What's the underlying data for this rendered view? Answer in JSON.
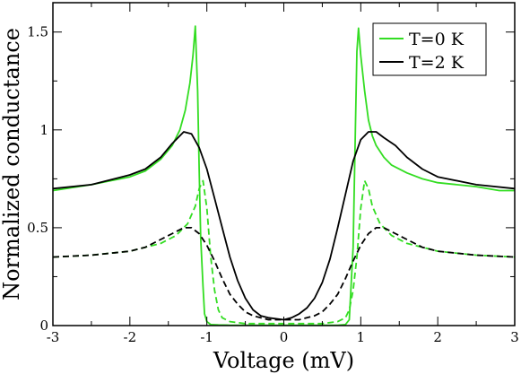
{
  "chart_data": {
    "type": "line",
    "xlabel": "Voltage (mV)",
    "ylabel": "Normalized conductance",
    "xlim": [
      -3,
      3
    ],
    "ylim": [
      0,
      1.65
    ],
    "x_ticks": [
      -3,
      -2,
      -1,
      0,
      1,
      2,
      3
    ],
    "x_tick_labels": [
      "-3",
      "-2",
      "-1",
      "0",
      "1",
      "2",
      "3"
    ],
    "y_ticks": [
      0,
      0.5,
      1,
      1.5
    ],
    "y_tick_labels": [
      "0",
      "0.5",
      "1",
      "1.5"
    ],
    "grid": false,
    "legend": {
      "placement": "top-right",
      "entries": [
        {
          "label": "T=0 K",
          "color": "#33dd22"
        },
        {
          "label": "T=2 K",
          "color": "#000000"
        }
      ]
    },
    "series": [
      {
        "color": "#33dd22",
        "dash": "solid",
        "legend_entry": 0,
        "x": [
          -3,
          -2.5,
          -2,
          -1.8,
          -1.6,
          -1.45,
          -1.35,
          -1.28,
          -1.22,
          -1.18,
          -1.15,
          -1.12,
          -1.1,
          -1.08,
          -1.05,
          -1.03,
          -1.0,
          -0.95,
          -0.85,
          -0.7,
          -0.5,
          -0.3,
          0,
          0.3,
          0.5,
          0.7,
          0.8,
          0.85,
          0.9,
          0.93,
          0.95,
          0.97,
          1.0,
          1.05,
          1.1,
          1.15,
          1.2,
          1.3,
          1.4,
          1.6,
          1.8,
          2.0,
          2.5,
          2.8,
          3.0
        ],
        "y": [
          0.69,
          0.72,
          0.76,
          0.79,
          0.85,
          0.92,
          1.0,
          1.1,
          1.24,
          1.38,
          1.53,
          1.2,
          0.8,
          0.45,
          0.2,
          0.06,
          0.02,
          0.005,
          0.003,
          0.002,
          0.002,
          0.002,
          0.002,
          0.002,
          0.002,
          0.002,
          0.005,
          0.03,
          0.4,
          1.0,
          1.4,
          1.52,
          1.38,
          1.2,
          1.05,
          0.97,
          0.92,
          0.86,
          0.82,
          0.78,
          0.75,
          0.73,
          0.71,
          0.69,
          0.69
        ]
      },
      {
        "color": "#000000",
        "dash": "solid",
        "legend_entry": 1,
        "x": [
          -3,
          -2.5,
          -2,
          -1.8,
          -1.6,
          -1.45,
          -1.3,
          -1.2,
          -1.1,
          -1.0,
          -0.9,
          -0.8,
          -0.7,
          -0.6,
          -0.5,
          -0.4,
          -0.3,
          -0.2,
          0,
          0.1,
          0.2,
          0.3,
          0.4,
          0.5,
          0.6,
          0.7,
          0.8,
          0.9,
          1.0,
          1.1,
          1.2,
          1.3,
          1.45,
          1.6,
          1.8,
          2.0,
          2.5,
          3.0
        ],
        "y": [
          0.7,
          0.72,
          0.77,
          0.8,
          0.86,
          0.93,
          0.99,
          0.98,
          0.91,
          0.8,
          0.65,
          0.5,
          0.35,
          0.23,
          0.14,
          0.08,
          0.05,
          0.04,
          0.03,
          0.04,
          0.06,
          0.09,
          0.14,
          0.22,
          0.34,
          0.5,
          0.67,
          0.84,
          0.95,
          0.99,
          0.99,
          0.96,
          0.92,
          0.86,
          0.8,
          0.76,
          0.72,
          0.7
        ]
      },
      {
        "color": "#33dd22",
        "dash": "dashed",
        "x": [
          -3,
          -2.5,
          -2,
          -1.8,
          -1.6,
          -1.4,
          -1.25,
          -1.15,
          -1.1,
          -1.05,
          -1.0,
          -0.95,
          -0.9,
          -0.85,
          -0.8,
          -0.7,
          -0.5,
          -0.3,
          0,
          0.3,
          0.5,
          0.7,
          0.8,
          0.85,
          0.9,
          0.95,
          1.0,
          1.05,
          1.1,
          1.15,
          1.25,
          1.4,
          1.6,
          1.8,
          2.0,
          2.5,
          3.0
        ],
        "y": [
          0.35,
          0.36,
          0.38,
          0.4,
          0.42,
          0.46,
          0.52,
          0.61,
          0.7,
          0.74,
          0.6,
          0.35,
          0.18,
          0.08,
          0.04,
          0.02,
          0.01,
          0.01,
          0.01,
          0.01,
          0.01,
          0.02,
          0.04,
          0.08,
          0.18,
          0.35,
          0.6,
          0.74,
          0.7,
          0.61,
          0.52,
          0.46,
          0.42,
          0.4,
          0.38,
          0.36,
          0.35
        ]
      },
      {
        "color": "#000000",
        "dash": "dashed",
        "x": [
          -3,
          -2.5,
          -2,
          -1.8,
          -1.6,
          -1.45,
          -1.3,
          -1.2,
          -1.1,
          -1.0,
          -0.9,
          -0.8,
          -0.7,
          -0.6,
          -0.5,
          -0.4,
          -0.3,
          -0.2,
          0,
          0.2,
          0.3,
          0.4,
          0.5,
          0.6,
          0.7,
          0.8,
          0.9,
          1.0,
          1.1,
          1.2,
          1.3,
          1.45,
          1.6,
          1.8,
          2.0,
          2.5,
          3.0
        ],
        "y": [
          0.35,
          0.36,
          0.38,
          0.4,
          0.44,
          0.47,
          0.5,
          0.5,
          0.47,
          0.41,
          0.33,
          0.24,
          0.16,
          0.11,
          0.07,
          0.05,
          0.04,
          0.03,
          0.03,
          0.03,
          0.04,
          0.05,
          0.07,
          0.11,
          0.16,
          0.24,
          0.33,
          0.41,
          0.47,
          0.5,
          0.5,
          0.47,
          0.44,
          0.4,
          0.38,
          0.36,
          0.35
        ]
      }
    ]
  }
}
